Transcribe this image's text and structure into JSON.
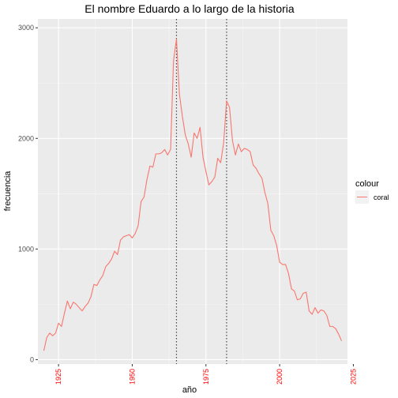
{
  "chart_data": {
    "type": "line",
    "title": "El nombre Eduardo a lo largo de la historia",
    "xlabel": "año",
    "ylabel": "frecuencia",
    "xlim": [
      1918,
      2023
    ],
    "ylim": [
      -40,
      3080
    ],
    "x_ticks": [
      1925,
      1950,
      1975,
      2000,
      2025
    ],
    "x_tick_labels": [
      "1925",
      "1950",
      "1975",
      "2000",
      "2025"
    ],
    "y_ticks": [
      0,
      1000,
      2000,
      3000
    ],
    "y_tick_labels": [
      "0",
      "1000",
      "2000",
      "3000"
    ],
    "x_tick_color": "#ff0000",
    "grid": true,
    "panel_color": "#ebebeb",
    "vlines": [
      1965,
      1982
    ],
    "legend": {
      "title": "colour",
      "position": "right",
      "entries": [
        {
          "label": "coral",
          "color": "#f8766d"
        }
      ]
    },
    "series": [
      {
        "name": "coral",
        "color": "#f8766d",
        "x": [
          1920,
          1921,
          1922,
          1923,
          1924,
          1925,
          1926,
          1927,
          1928,
          1929,
          1930,
          1931,
          1932,
          1933,
          1934,
          1935,
          1936,
          1937,
          1938,
          1939,
          1940,
          1941,
          1942,
          1943,
          1944,
          1945,
          1946,
          1947,
          1948,
          1949,
          1950,
          1951,
          1952,
          1953,
          1954,
          1955,
          1956,
          1957,
          1958,
          1959,
          1960,
          1961,
          1962,
          1963,
          1964,
          1965,
          1966,
          1967,
          1968,
          1969,
          1970,
          1971,
          1972,
          1973,
          1974,
          1975,
          1976,
          1977,
          1978,
          1979,
          1980,
          1981,
          1982,
          1983,
          1984,
          1985,
          1986,
          1987,
          1988,
          1989,
          1990,
          1991,
          1992,
          1993,
          1994,
          1995,
          1996,
          1997,
          1998,
          1999,
          2000,
          2001,
          2002,
          2003,
          2004,
          2005,
          2006,
          2007,
          2008,
          2009,
          2010,
          2011,
          2012,
          2013,
          2014,
          2015,
          2016,
          2017,
          2018,
          2019,
          2020,
          2021
        ],
        "y": [
          80,
          200,
          240,
          215,
          240,
          330,
          300,
          420,
          530,
          460,
          520,
          500,
          470,
          440,
          480,
          510,
          570,
          680,
          670,
          720,
          760,
          840,
          870,
          910,
          980,
          950,
          1080,
          1110,
          1120,
          1130,
          1100,
          1140,
          1210,
          1430,
          1470,
          1630,
          1750,
          1740,
          1860,
          1860,
          1870,
          1900,
          1850,
          1900,
          2700,
          2900,
          2400,
          2200,
          2030,
          1950,
          1830,
          2050,
          2000,
          2100,
          1830,
          1700,
          1580,
          1610,
          1650,
          1820,
          1780,
          1960,
          2340,
          2280,
          1980,
          1850,
          1950,
          1880,
          1910,
          1900,
          1880,
          1760,
          1730,
          1680,
          1640,
          1510,
          1410,
          1170,
          1120,
          1030,
          880,
          860,
          860,
          780,
          640,
          620,
          540,
          550,
          600,
          610,
          440,
          410,
          470,
          420,
          450,
          440,
          400,
          300,
          300,
          280,
          230,
          170
        ]
      }
    ]
  }
}
